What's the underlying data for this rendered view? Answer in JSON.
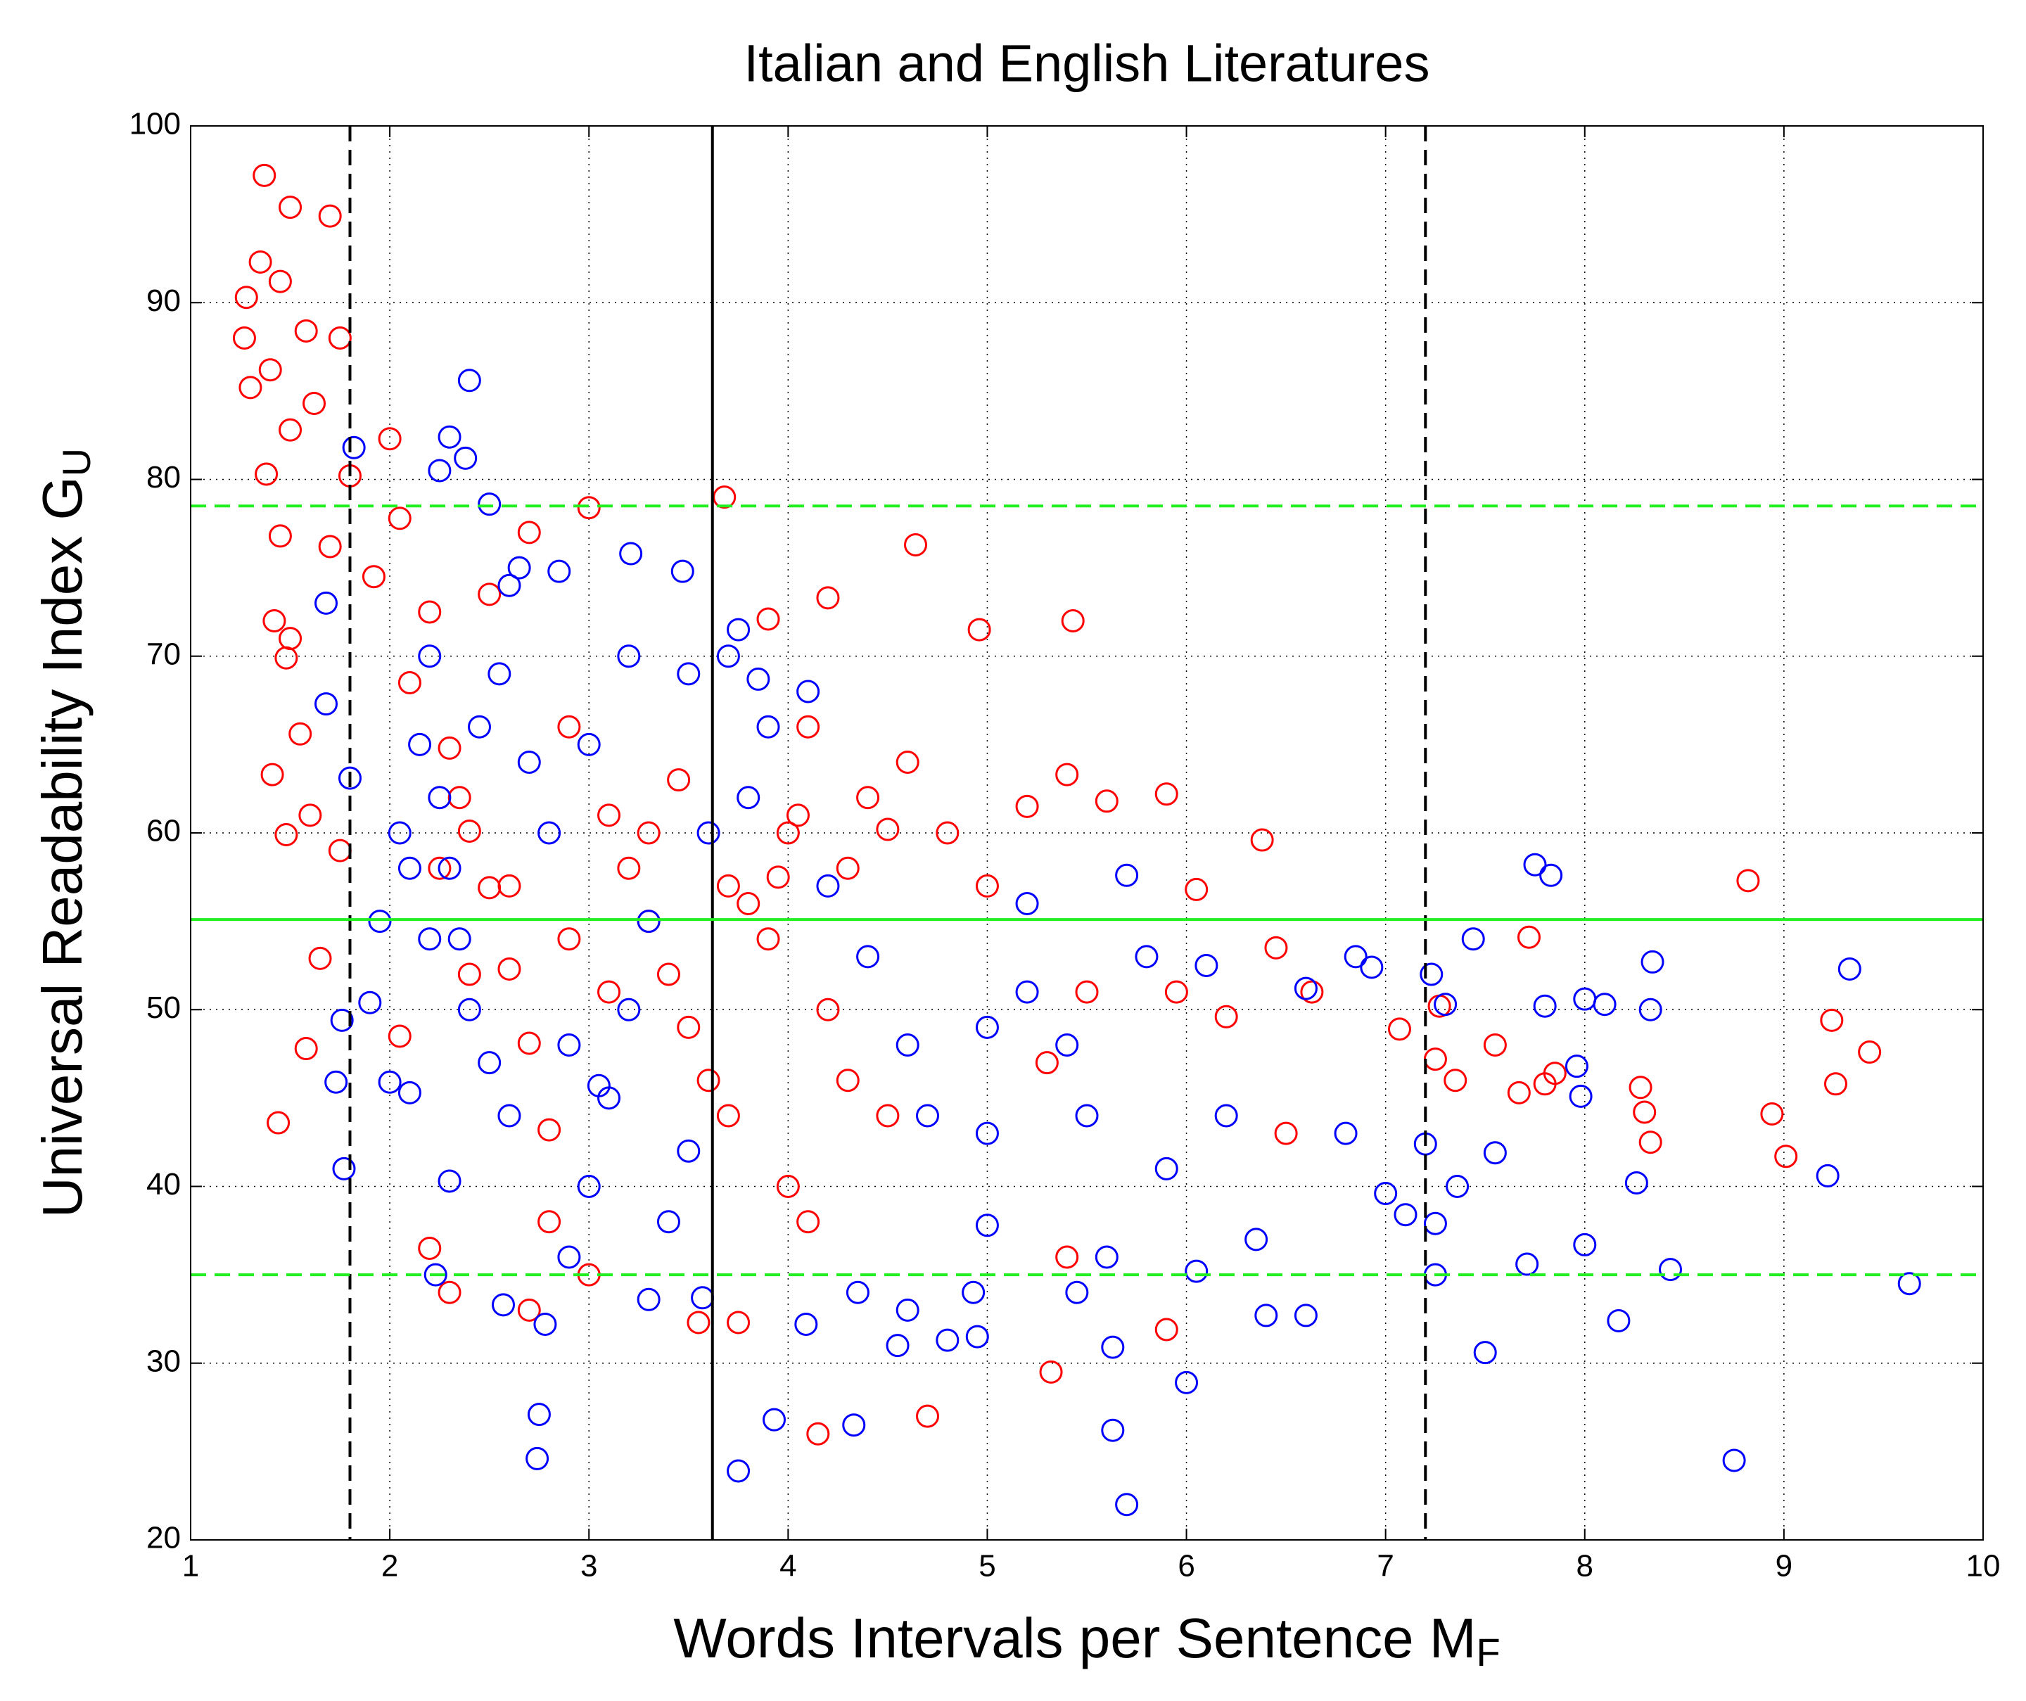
{
  "chart_data": {
    "type": "scatter",
    "title": "Italian and English Literatures",
    "x_label": "Words Intervals per Sentence M",
    "x_label_sub": "F",
    "y_label": "Universal Readability Index G",
    "y_label_sub": "U",
    "xlim": [
      1,
      10
    ],
    "xticks": [
      1,
      2,
      3,
      4,
      5,
      6,
      7,
      8,
      9,
      10
    ],
    "ylim": [
      20,
      100
    ],
    "yticks": [
      20,
      30,
      40,
      50,
      60,
      70,
      80,
      90,
      100
    ],
    "grid": true,
    "series": [
      {
        "color": "#ff0000",
        "x": [
          1.27,
          1.28,
          1.35,
          1.37,
          1.3,
          1.4,
          1.45,
          1.5,
          1.58,
          1.7,
          1.75,
          1.62,
          1.5,
          1.38,
          1.45,
          1.42,
          1.5,
          1.48,
          1.55,
          1.41,
          1.6,
          1.48,
          1.44,
          1.58,
          1.65,
          1.75,
          1.7,
          1.8,
          1.92,
          2.0,
          2.05,
          2.1,
          2.2,
          2.3,
          2.4,
          2.5,
          2.6,
          2.7,
          2.8,
          2.7,
          2.3,
          2.2,
          2.05,
          2.5,
          2.7,
          3.0,
          2.9,
          3.1,
          3.2,
          3.3,
          3.4,
          3.5,
          3.6,
          3.55,
          3.75,
          3.68,
          3.9,
          4.2,
          4.1,
          4.0,
          3.8,
          3.9,
          4.3,
          4.4,
          4.2,
          4.3,
          4.5,
          4.15,
          4.7,
          4.64,
          4.96,
          4.6,
          4.8,
          5.0,
          5.2,
          5.4,
          5.43,
          5.6,
          5.9,
          6.05,
          6.38,
          5.5,
          5.3,
          5.4,
          5.32,
          5.9,
          5.95,
          6.2,
          6.5,
          6.45,
          6.63,
          7.07,
          7.25,
          7.27,
          7.35,
          7.55,
          7.67,
          7.72,
          7.8,
          7.85,
          8.28,
          8.3,
          8.33,
          8.82,
          8.94,
          9.01,
          9.24,
          9.26,
          9.43,
          4.1,
          4.0,
          3.7,
          3.0,
          2.8,
          3.1,
          3.3,
          3.45,
          3.7,
          3.95,
          4.05,
          4.5,
          2.9,
          2.6,
          2.4,
          2.35,
          2.25
        ],
        "values": [
          88,
          90.3,
          92.3,
          97.2,
          85.2,
          86.2,
          91.2,
          95.4,
          88.4,
          94.9,
          88,
          84.3,
          82.8,
          80.3,
          76.8,
          72,
          71,
          69.9,
          65.6,
          63.3,
          61,
          59.9,
          43.6,
          47.8,
          52.9,
          59,
          76.2,
          80.2,
          74.5,
          82.3,
          77.8,
          68.5,
          72.5,
          64.8,
          60.1,
          56.9,
          52.3,
          48.1,
          43.2,
          33,
          34,
          36.5,
          48.5,
          73.5,
          77,
          78.4,
          66,
          61,
          58,
          55,
          52,
          49,
          46,
          32.3,
          32.3,
          79,
          72.1,
          73.3,
          66,
          60,
          56,
          54,
          58,
          62,
          50,
          46,
          44,
          26,
          27,
          76.3,
          71.5,
          64,
          60,
          57,
          61.5,
          63.3,
          72,
          61.8,
          62.2,
          56.8,
          59.6,
          51,
          47,
          36,
          29.5,
          31.9,
          51,
          49.6,
          43,
          53.5,
          51,
          48.9,
          47.2,
          50.2,
          46,
          48,
          45.3,
          54.1,
          45.8,
          46.4,
          45.6,
          44.2,
          42.5,
          57.3,
          44.1,
          41.7,
          49.4,
          45.8,
          47.6,
          38,
          40,
          44,
          35,
          38,
          51,
          60,
          63,
          57,
          57.5,
          61,
          60.2,
          54,
          57,
          52,
          62,
          58
        ]
      },
      {
        "color": "#0000ff",
        "x": [
          1.73,
          1.76,
          1.77,
          1.8,
          1.82,
          1.68,
          1.68,
          1.9,
          2.0,
          2.1,
          1.95,
          2.05,
          2.15,
          2.2,
          2.25,
          2.3,
          2.35,
          2.4,
          2.3,
          2.25,
          2.38,
          2.5,
          2.6,
          2.4,
          2.5,
          2.6,
          2.3,
          2.23,
          2.57,
          2.78,
          2.75,
          2.74,
          2.9,
          3.0,
          3.1,
          3.2,
          3.3,
          3.0,
          3.2,
          3.21,
          3.47,
          3.5,
          3.5,
          3.4,
          3.3,
          3.57,
          3.75,
          3.93,
          4.09,
          4.33,
          4.35,
          4.55,
          4.6,
          4.8,
          4.93,
          4.95,
          5.0,
          5.0,
          5.0,
          5.2,
          5.2,
          5.4,
          5.5,
          5.45,
          5.6,
          5.63,
          5.63,
          5.7,
          5.7,
          5.8,
          5.9,
          6.0,
          6.05,
          6.1,
          6.2,
          6.35,
          6.4,
          6.6,
          6.6,
          6.8,
          6.85,
          6.93,
          7.0,
          7.1,
          7.2,
          7.23,
          7.25,
          7.25,
          7.3,
          7.36,
          7.44,
          7.5,
          7.55,
          7.71,
          7.75,
          7.83,
          7.8,
          7.96,
          7.98,
          8.0,
          8.0,
          8.1,
          8.17,
          8.26,
          8.34,
          8.33,
          8.43,
          8.75,
          9.22,
          9.33,
          9.63,
          2.8,
          2.7,
          3.6,
          3.8,
          4.2,
          4.4,
          4.6,
          4.7,
          3.9,
          4.1,
          3.7,
          3.75,
          3.85,
          2.1,
          2.2,
          2.45,
          2.55,
          2.65,
          2.85,
          2.9,
          3.05
        ],
        "values": [
          45.9,
          49.4,
          41,
          63.1,
          81.8,
          73,
          67.3,
          50.4,
          45.9,
          45.3,
          55,
          60,
          65,
          70,
          62,
          58,
          54,
          85.6,
          82.4,
          80.5,
          81.2,
          78.6,
          74,
          50,
          47,
          44,
          40.3,
          35,
          33.3,
          32.2,
          27.1,
          24.6,
          36,
          40,
          45,
          50,
          55,
          65,
          70,
          75.8,
          74.8,
          69,
          42,
          38,
          33.6,
          33.7,
          23.9,
          26.8,
          32.2,
          26.5,
          34,
          31,
          33,
          31.3,
          34,
          31.5,
          37.8,
          43,
          49,
          56,
          51,
          48,
          44,
          34,
          36,
          30.9,
          26.2,
          22,
          57.6,
          53,
          41,
          28.9,
          35.2,
          52.5,
          44,
          37,
          32.7,
          32.7,
          51.2,
          43,
          53,
          52.4,
          39.6,
          38.4,
          42.4,
          52,
          37.9,
          35,
          50.3,
          40,
          54,
          30.6,
          41.9,
          35.6,
          58.2,
          57.6,
          50.2,
          46.8,
          45.1,
          36.7,
          50.6,
          50.3,
          32.4,
          40.2,
          52.7,
          50,
          35.3,
          24.5,
          40.6,
          52.3,
          34.5,
          60,
          64,
          60,
          62,
          57,
          53,
          48,
          44,
          66,
          68,
          70,
          71.5,
          68.7,
          58,
          54,
          66,
          69,
          75,
          74.8,
          48,
          45.7
        ]
      }
    ],
    "reference_lines": [
      {
        "axis": "x",
        "value": 1.8,
        "style": "dashed",
        "color": "#000000"
      },
      {
        "axis": "x",
        "value": 3.62,
        "style": "solid",
        "color": "#000000"
      },
      {
        "axis": "x",
        "value": 7.2,
        "style": "dashed",
        "color": "#000000"
      },
      {
        "axis": "y",
        "value": 78.5,
        "style": "dashed",
        "color": "#22ee22"
      },
      {
        "axis": "y",
        "value": 55.1,
        "style": "solid",
        "color": "#22ee22"
      },
      {
        "axis": "y",
        "value": 35,
        "style": "dashed",
        "color": "#22ee22"
      }
    ]
  }
}
